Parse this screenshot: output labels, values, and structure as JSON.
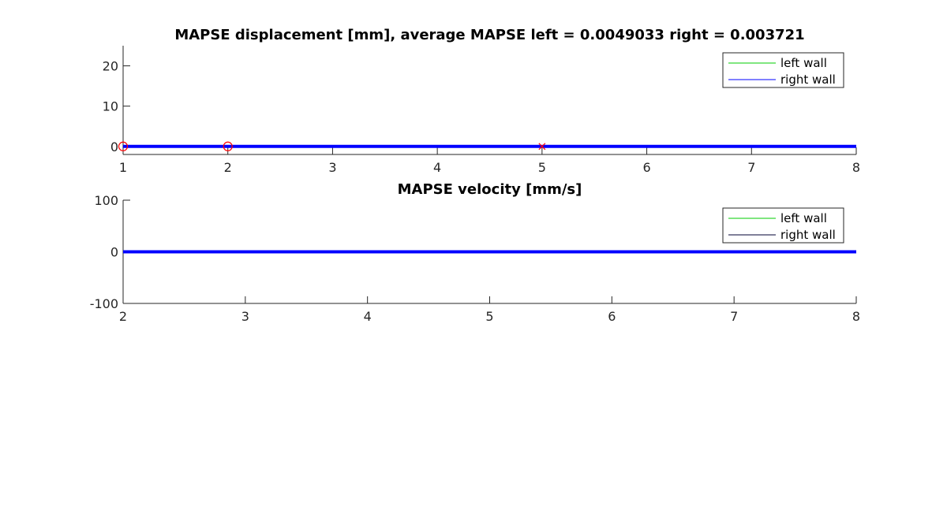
{
  "chart_data": [
    {
      "type": "line",
      "title": "MAPSE displacement [mm], average MAPSE left = 0.0049033 right = 0.003721",
      "xlabel": "",
      "ylabel": "",
      "xlim": [
        1,
        8
      ],
      "ylim": [
        -2,
        25
      ],
      "xticks": [
        "1",
        "2",
        "3",
        "4",
        "5",
        "6",
        "7",
        "8"
      ],
      "yticks": [
        "0",
        "10",
        "20"
      ],
      "xtick_values": [
        1,
        2,
        3,
        4,
        5,
        6,
        7,
        8
      ],
      "ytick_values": [
        0,
        10,
        20
      ],
      "grid": false,
      "legend_position": "top-right",
      "series": [
        {
          "name": "left wall",
          "color": "#00cc00",
          "x": [
            1,
            2,
            3,
            4,
            5,
            6,
            7,
            8
          ],
          "y": [
            0,
            0,
            0,
            0,
            0,
            0,
            0,
            0
          ]
        },
        {
          "name": "right wall",
          "color": "#0000ff",
          "x": [
            1,
            2,
            3,
            4,
            5,
            6,
            7,
            8
          ],
          "y": [
            0,
            0,
            0,
            0,
            0,
            0,
            0,
            0
          ]
        }
      ],
      "markers": [
        {
          "symbol": "circle",
          "color": "#ff0000",
          "x": 1,
          "y": 0
        },
        {
          "symbol": "circle",
          "color": "#ff0000",
          "x": 2,
          "y": 0
        },
        {
          "symbol": "cross",
          "color": "#ff0000",
          "x": 5,
          "y": 0
        }
      ]
    },
    {
      "type": "line",
      "title": "MAPSE velocity [mm/s]",
      "xlabel": "",
      "ylabel": "",
      "xlim": [
        2,
        8
      ],
      "ylim": [
        -100,
        100
      ],
      "xticks": [
        "2",
        "3",
        "4",
        "5",
        "6",
        "7",
        "8"
      ],
      "yticks": [
        "-100",
        "0",
        "100"
      ],
      "xtick_values": [
        2,
        3,
        4,
        5,
        6,
        7,
        8
      ],
      "ytick_values": [
        -100,
        0,
        100
      ],
      "grid": false,
      "legend_position": "top-right",
      "series": [
        {
          "name": "left wall",
          "color": "#00cc00",
          "x": [
            2,
            3,
            4,
            5,
            6,
            7,
            8
          ],
          "y": [
            0,
            0,
            0,
            0,
            0,
            0,
            0
          ]
        },
        {
          "name": "right wall",
          "color": "#0000ff",
          "legend_color": "#000033",
          "x": [
            2,
            3,
            4,
            5,
            6,
            7,
            8
          ],
          "y": [
            0,
            0,
            0,
            0,
            0,
            0,
            0
          ]
        }
      ],
      "markers": []
    }
  ]
}
